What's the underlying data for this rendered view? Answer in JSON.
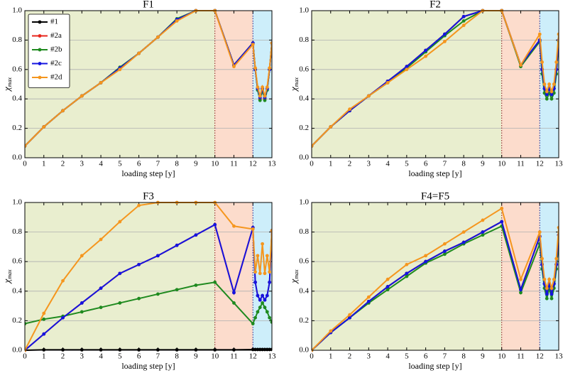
{
  "chart_data": [
    {
      "type": "line",
      "title": "F1",
      "xlabel": "loading step [y]",
      "ylabel": "χ",
      "ylabel_sub": "max",
      "xlim": [
        0,
        13
      ],
      "ylim": [
        0,
        1
      ],
      "xticks": [
        0,
        1,
        2,
        3,
        4,
        5,
        6,
        7,
        8,
        9,
        10,
        11,
        12,
        13
      ],
      "yticks": [
        {
          "value": 0,
          "label": "0.0"
        },
        0.2,
        0.4,
        0.6,
        0.8,
        {
          "value": 1,
          "label": "1.0"
        }
      ],
      "grid": true,
      "legend": "upper left",
      "regions": [
        {
          "x0": 0,
          "x1": 10,
          "color": "#e9eecf"
        },
        {
          "x0": 10,
          "x1": 12,
          "color": "#fcdccc"
        },
        {
          "x0": 12,
          "x1": 13,
          "color": "#cdeefa"
        }
      ],
      "vlines": [
        {
          "x": 10,
          "color": "#8b1a1a"
        },
        {
          "x": 12,
          "color": "#1a1a8b"
        }
      ],
      "x": [
        0,
        1,
        2,
        3,
        4,
        5,
        6,
        7,
        8,
        9,
        10,
        11,
        12,
        12.125,
        12.25,
        12.375,
        12.5,
        12.625,
        12.75,
        12.875,
        13
      ],
      "series": [
        {
          "name": "#1",
          "color": "#000000",
          "values": [
            0.08,
            0.21,
            0.32,
            0.42,
            0.51,
            0.61,
            0.71,
            0.82,
            0.94,
            1,
            1,
            0.63,
            0.78,
            0.6,
            0.47,
            0.4,
            0.47,
            0.4,
            0.47,
            0.6,
            0.78
          ]
        },
        {
          "name": "#2a",
          "color": "#e8261c",
          "values": [
            0.08,
            0.21,
            0.32,
            0.42,
            0.51,
            0.61,
            0.71,
            0.82,
            0.94,
            1,
            1,
            0.63,
            0.78,
            0.6,
            0.47,
            0.4,
            0.47,
            0.4,
            0.47,
            0.6,
            0.78
          ]
        },
        {
          "name": "#2b",
          "color": "#1f8a1f",
          "values": [
            0.08,
            0.21,
            0.32,
            0.42,
            0.51,
            0.615,
            0.71,
            0.82,
            0.945,
            1,
            1,
            0.63,
            0.78,
            0.6,
            0.46,
            0.39,
            0.46,
            0.39,
            0.46,
            0.6,
            0.78
          ]
        },
        {
          "name": "#2c",
          "color": "#1414e0",
          "values": [
            0.08,
            0.21,
            0.32,
            0.42,
            0.51,
            0.61,
            0.71,
            0.82,
            0.94,
            1,
            1,
            0.63,
            0.78,
            0.6,
            0.47,
            0.41,
            0.47,
            0.41,
            0.47,
            0.6,
            0.78
          ]
        },
        {
          "name": "#2d",
          "color": "#f5961e",
          "values": [
            0.08,
            0.21,
            0.32,
            0.42,
            0.51,
            0.6,
            0.71,
            0.82,
            0.93,
            1,
            1,
            0.62,
            0.77,
            0.61,
            0.48,
            0.42,
            0.48,
            0.42,
            0.48,
            0.61,
            0.78
          ]
        }
      ]
    },
    {
      "type": "line",
      "title": "F2",
      "xlabel": "loading step [y]",
      "ylabel": "χ",
      "ylabel_sub": "max",
      "xlim": [
        0,
        13
      ],
      "ylim": [
        0,
        1
      ],
      "xticks": [
        0,
        1,
        2,
        3,
        4,
        5,
        6,
        7,
        8,
        9,
        10,
        11,
        12,
        13
      ],
      "yticks": [
        {
          "value": 0,
          "label": "0.0"
        },
        0.2,
        0.4,
        0.6,
        0.8,
        {
          "value": 1,
          "label": "1.0"
        }
      ],
      "grid": true,
      "regions": [
        {
          "x0": 0,
          "x1": 10,
          "color": "#e9eecf"
        },
        {
          "x0": 10,
          "x1": 12,
          "color": "#fcdccc"
        },
        {
          "x0": 12,
          "x1": 13,
          "color": "#cdeefa"
        }
      ],
      "vlines": [
        {
          "x": 10,
          "color": "#8b1a1a"
        },
        {
          "x": 12,
          "color": "#1a1a8b"
        }
      ],
      "x": [
        0,
        1,
        2,
        3,
        4,
        5,
        6,
        7,
        8,
        9,
        10,
        11,
        12,
        12.125,
        12.25,
        12.375,
        12.5,
        12.625,
        12.75,
        12.875,
        13
      ],
      "series": [
        {
          "name": "#1",
          "color": "#000000",
          "values": [
            0.08,
            0.21,
            0.32,
            0.42,
            0.52,
            0.62,
            0.73,
            0.84,
            0.96,
            1,
            1,
            0.63,
            0.8,
            0.6,
            0.47,
            0.43,
            0.47,
            0.43,
            0.47,
            0.6,
            0.8
          ]
        },
        {
          "name": "#2a",
          "color": "#e8261c",
          "values": [
            0.08,
            0.21,
            0.32,
            0.42,
            0.52,
            0.62,
            0.73,
            0.84,
            0.96,
            1,
            1,
            0.63,
            0.8,
            0.6,
            0.47,
            0.43,
            0.47,
            0.43,
            0.47,
            0.6,
            0.8
          ]
        },
        {
          "name": "#2b",
          "color": "#1f8a1f",
          "values": [
            0.08,
            0.21,
            0.32,
            0.42,
            0.51,
            0.61,
            0.72,
            0.83,
            0.93,
            1,
            1,
            0.62,
            0.79,
            0.57,
            0.44,
            0.4,
            0.44,
            0.4,
            0.44,
            0.57,
            0.79
          ]
        },
        {
          "name": "#2c",
          "color": "#1414e0",
          "values": [
            0.08,
            0.21,
            0.32,
            0.42,
            0.52,
            0.62,
            0.73,
            0.84,
            0.96,
            1,
            1,
            0.63,
            0.8,
            0.6,
            0.47,
            0.43,
            0.47,
            0.43,
            0.47,
            0.6,
            0.8
          ]
        },
        {
          "name": "#2d",
          "color": "#f5961e",
          "values": [
            0.08,
            0.21,
            0.33,
            0.42,
            0.51,
            0.6,
            0.69,
            0.79,
            0.9,
            1,
            1,
            0.63,
            0.84,
            0.65,
            0.5,
            0.45,
            0.5,
            0.45,
            0.5,
            0.65,
            0.84
          ]
        }
      ]
    },
    {
      "type": "line",
      "title": "F3",
      "xlabel": "loading step [y]",
      "ylabel": "χ",
      "ylabel_sub": "max",
      "xlim": [
        0,
        13
      ],
      "ylim": [
        0,
        1
      ],
      "xticks": [
        0,
        1,
        2,
        3,
        4,
        5,
        6,
        7,
        8,
        9,
        10,
        11,
        12,
        13
      ],
      "yticks": [
        {
          "value": 0,
          "label": "0.0"
        },
        0.2,
        0.4,
        0.6,
        0.8,
        {
          "value": 1,
          "label": "1.0"
        }
      ],
      "grid": true,
      "regions": [
        {
          "x0": 0,
          "x1": 10,
          "color": "#e9eecf"
        },
        {
          "x0": 10,
          "x1": 12,
          "color": "#fcdccc"
        },
        {
          "x0": 12,
          "x1": 13,
          "color": "#cdeefa"
        }
      ],
      "vlines": [
        {
          "x": 10,
          "color": "#8b1a1a"
        },
        {
          "x": 12,
          "color": "#1a1a8b"
        }
      ],
      "x": [
        0,
        1,
        2,
        3,
        4,
        5,
        6,
        7,
        8,
        9,
        10,
        11,
        12,
        12.125,
        12.25,
        12.375,
        12.5,
        12.625,
        12.75,
        12.875,
        13
      ],
      "series": [
        {
          "name": "#1",
          "color": "#000000",
          "values": [
            0,
            0.003,
            0.003,
            0.003,
            0.003,
            0.003,
            0.003,
            0.003,
            0.003,
            0.003,
            0.003,
            0.003,
            0.005,
            0.005,
            0.005,
            0.005,
            0.005,
            0.005,
            0.005,
            0.005,
            0.005
          ]
        },
        {
          "name": "#2a",
          "color": "#e8261c",
          "values": [
            0,
            0.11,
            0.22,
            0.32,
            0.42,
            0.52,
            0.58,
            0.64,
            0.71,
            0.78,
            0.85,
            0.39,
            0.83,
            0.46,
            0.37,
            0.34,
            0.37,
            0.34,
            0.37,
            0.46,
            0.81
          ]
        },
        {
          "name": "#2b",
          "color": "#1f8a1f",
          "values": [
            0.18,
            0.21,
            0.23,
            0.26,
            0.29,
            0.32,
            0.35,
            0.38,
            0.41,
            0.44,
            0.46,
            0.32,
            0.18,
            0.22,
            0.26,
            0.29,
            0.32,
            0.29,
            0.26,
            0.22,
            0.19
          ]
        },
        {
          "name": "#2c",
          "color": "#1414e0",
          "values": [
            0,
            0.11,
            0.22,
            0.32,
            0.42,
            0.52,
            0.58,
            0.64,
            0.71,
            0.78,
            0.85,
            0.39,
            0.83,
            0.46,
            0.37,
            0.34,
            0.37,
            0.34,
            0.37,
            0.46,
            0.81
          ]
        },
        {
          "name": "#2d",
          "color": "#f5961e",
          "values": [
            0,
            0.25,
            0.47,
            0.64,
            0.75,
            0.87,
            0.98,
            1,
            1,
            1,
            1,
            0.84,
            0.82,
            0.53,
            0.64,
            0.52,
            0.72,
            0.52,
            0.64,
            0.53,
            0.81
          ]
        }
      ]
    },
    {
      "type": "line",
      "title": "F4=F5",
      "xlabel": "loading step [y]",
      "ylabel": "χ",
      "ylabel_sub": "max",
      "xlim": [
        0,
        13
      ],
      "ylim": [
        0,
        1
      ],
      "xticks": [
        0,
        1,
        2,
        3,
        4,
        5,
        6,
        7,
        8,
        9,
        10,
        11,
        12,
        13
      ],
      "yticks": [
        {
          "value": 0,
          "label": "0.0"
        },
        0.2,
        0.4,
        0.6,
        0.8,
        {
          "value": 1,
          "label": "1.0"
        }
      ],
      "grid": true,
      "regions": [
        {
          "x0": 0,
          "x1": 10,
          "color": "#e9eecf"
        },
        {
          "x0": 10,
          "x1": 12,
          "color": "#fcdccc"
        },
        {
          "x0": 12,
          "x1": 13,
          "color": "#cdeefa"
        }
      ],
      "vlines": [
        {
          "x": 10,
          "color": "#8b1a1a"
        },
        {
          "x": 12,
          "color": "#1a1a8b"
        }
      ],
      "x": [
        0,
        1,
        2,
        3,
        4,
        5,
        6,
        7,
        8,
        9,
        10,
        11,
        12,
        12.125,
        12.25,
        12.375,
        12.5,
        12.625,
        12.75,
        12.875,
        13
      ],
      "series": [
        {
          "name": "#1",
          "color": "#000000",
          "values": [
            0,
            0.12,
            0.22,
            0.33,
            0.43,
            0.52,
            0.6,
            0.67,
            0.73,
            0.8,
            0.87,
            0.41,
            0.77,
            0.58,
            0.45,
            0.38,
            0.45,
            0.38,
            0.45,
            0.58,
            0.78
          ]
        },
        {
          "name": "#2a",
          "color": "#e8261c",
          "values": [
            0,
            0.12,
            0.22,
            0.33,
            0.43,
            0.52,
            0.6,
            0.67,
            0.73,
            0.8,
            0.87,
            0.41,
            0.77,
            0.58,
            0.45,
            0.38,
            0.45,
            0.38,
            0.45,
            0.58,
            0.78
          ]
        },
        {
          "name": "#2b",
          "color": "#1f8a1f",
          "values": [
            0,
            0.12,
            0.22,
            0.32,
            0.41,
            0.5,
            0.59,
            0.65,
            0.72,
            0.78,
            0.84,
            0.39,
            0.72,
            0.55,
            0.42,
            0.35,
            0.42,
            0.35,
            0.42,
            0.55,
            0.73
          ]
        },
        {
          "name": "#2c",
          "color": "#1414e0",
          "values": [
            0,
            0.12,
            0.22,
            0.33,
            0.43,
            0.52,
            0.6,
            0.67,
            0.73,
            0.8,
            0.87,
            0.41,
            0.77,
            0.58,
            0.45,
            0.38,
            0.45,
            0.38,
            0.45,
            0.58,
            0.78
          ]
        },
        {
          "name": "#2d",
          "color": "#f5961e",
          "values": [
            0,
            0.13,
            0.24,
            0.36,
            0.48,
            0.58,
            0.64,
            0.72,
            0.8,
            0.88,
            0.96,
            0.48,
            0.8,
            0.62,
            0.48,
            0.42,
            0.48,
            0.42,
            0.48,
            0.62,
            0.83
          ]
        }
      ]
    }
  ]
}
